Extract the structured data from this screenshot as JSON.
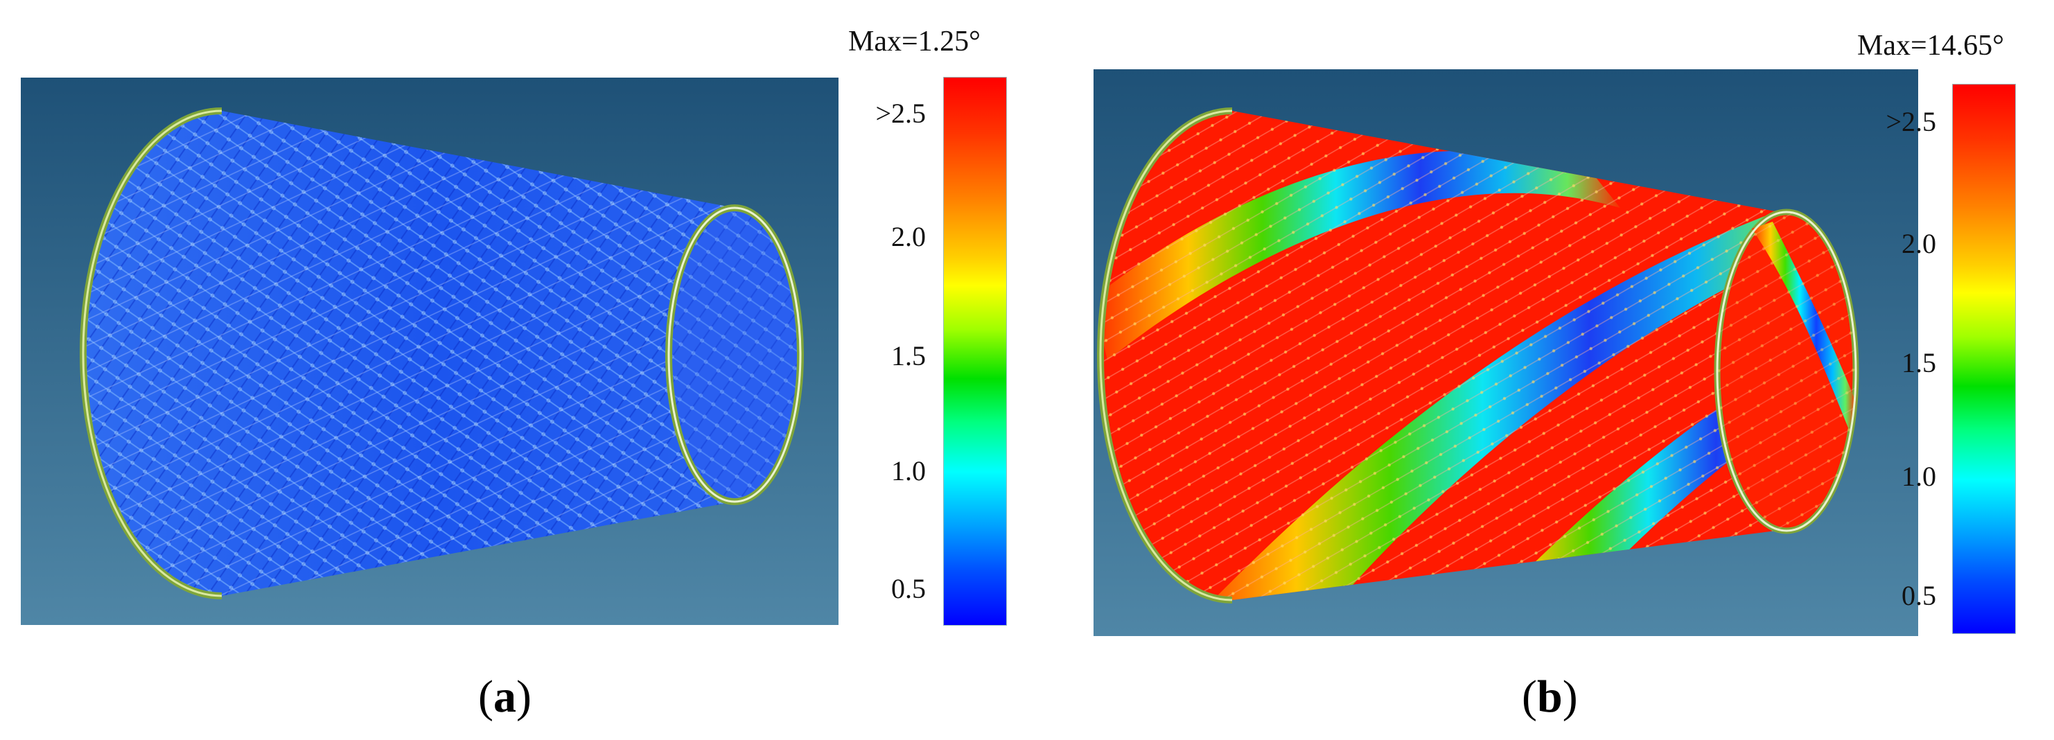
{
  "panels": [
    {
      "id": "a",
      "max_label": "Max=1.25°",
      "ticks": [
        ">2.5",
        "2.0",
        "1.5",
        "1.0",
        "0.5"
      ],
      "sublabel": {
        "open": "(",
        "letter": "a",
        "close": ")"
      },
      "max_value_deg": 1.25
    },
    {
      "id": "b",
      "max_label": "Max=14.65°",
      "ticks": [
        ">2.5",
        "2.0",
        "1.5",
        "1.0",
        "0.5"
      ],
      "sublabel": {
        "open": "(",
        "letter": "b",
        "close": ")"
      },
      "max_value_deg": 14.65
    }
  ],
  "colors": {
    "background_top": "#1e5177",
    "background_bottom": "#4f86a6",
    "rim": "#7fa53a",
    "low": "#0044ff",
    "high": "#ff0000"
  }
}
